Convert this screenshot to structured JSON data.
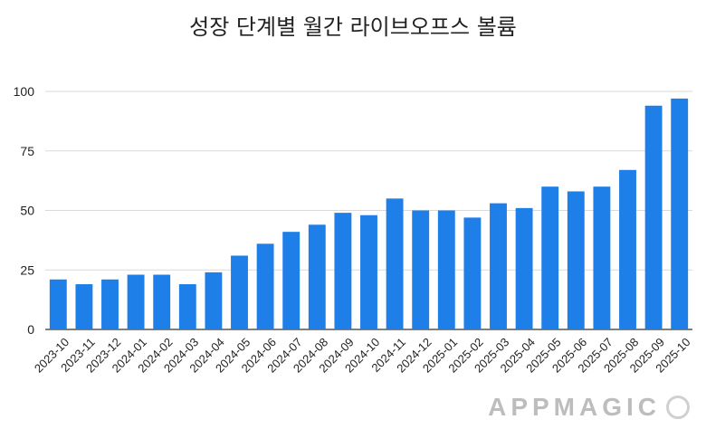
{
  "chart_data": {
    "type": "bar",
    "title": "성장 단계별 월간 라이브오프스 볼륨",
    "xlabel": "",
    "ylabel": "",
    "ylim": [
      0,
      100
    ],
    "yticks": [
      "0",
      "25",
      "50",
      "75",
      "100"
    ],
    "grid": true,
    "bar_color": "#1f7fe8",
    "categories": [
      "2023-10",
      "2023-11",
      "2023-12",
      "2024-01",
      "2024-02",
      "2024-03",
      "2024-04",
      "2024-05",
      "2024-06",
      "2024-07",
      "2024-08",
      "2024-09",
      "2024-10",
      "2024-11",
      "2024-12",
      "2025-01",
      "2025-02",
      "2025-03",
      "2025-04",
      "2025-05",
      "2025-06",
      "2025-07",
      "2025-08",
      "2025-09",
      "2025-10"
    ],
    "values": [
      21,
      19,
      21,
      23,
      23,
      19,
      24,
      31,
      36,
      41,
      44,
      49,
      48,
      55,
      50,
      50,
      47,
      53,
      51,
      60,
      58,
      60,
      67,
      94,
      97
    ]
  },
  "watermark": {
    "text": "APPMAGIC",
    "icon": "appmagic-logo-icon"
  }
}
